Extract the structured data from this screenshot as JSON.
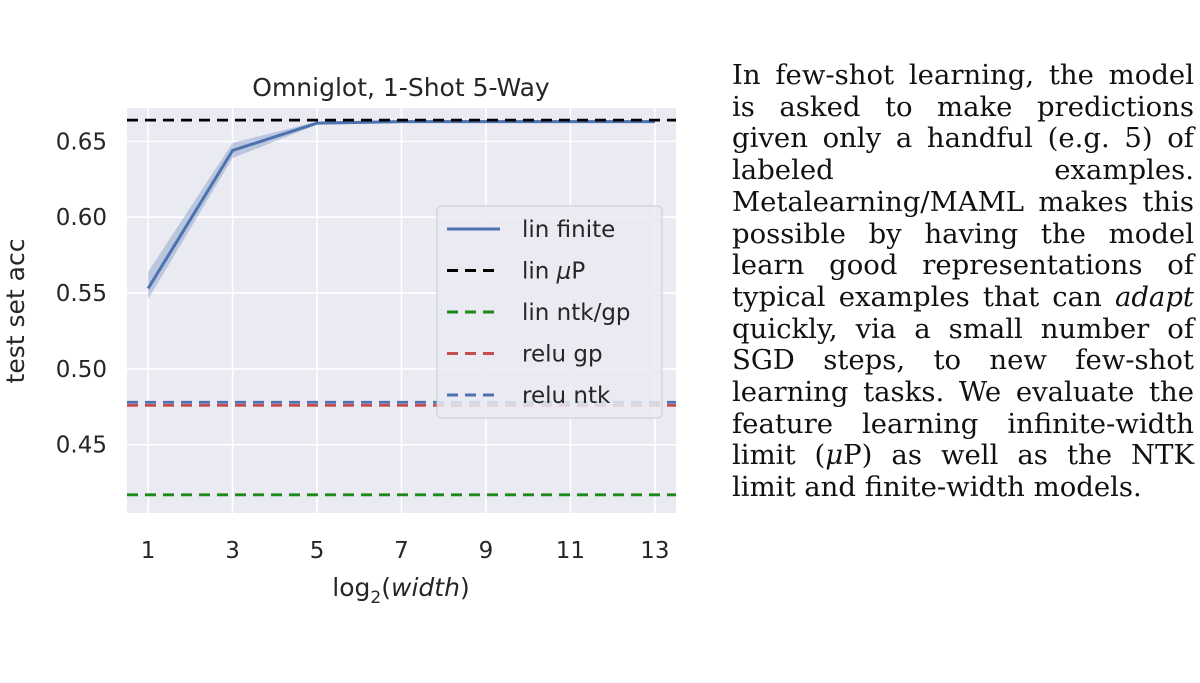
{
  "chart_data": {
    "type": "line",
    "title": "Omniglot, 1-Shot 5-Way",
    "xlabel": "log₂(width)",
    "xlabel_parts": {
      "prefix": "log",
      "subscript": "2",
      "open": "(",
      "italic": "width",
      "close": ")"
    },
    "ylabel": "test set acc",
    "x_ticks": [
      1,
      3,
      5,
      7,
      9,
      11,
      13
    ],
    "y_ticks": [
      "0.45",
      "0.50",
      "0.55",
      "0.60",
      "0.65"
    ],
    "xlim": [
      0.5,
      13.5
    ],
    "ylim": [
      0.405,
      0.672
    ],
    "grid": true,
    "legend_position": "center-right",
    "series": [
      {
        "name": "lin finite",
        "style": "solid",
        "color": "#4c72b0",
        "x": [
          1,
          3,
          5,
          7,
          9,
          11,
          13
        ],
        "y": [
          0.553,
          0.644,
          0.662,
          0.663,
          0.663,
          0.663,
          0.663
        ],
        "band_low": [
          0.546,
          0.639,
          0.661,
          0.662,
          0.662,
          0.662,
          0.662
        ],
        "band_high": [
          0.564,
          0.649,
          0.663,
          0.664,
          0.664,
          0.664,
          0.664
        ]
      },
      {
        "name": "lin μP",
        "name_parts": {
          "text": "lin ",
          "italic": "μ",
          "rest": "P"
        },
        "style": "dashed",
        "color": "#000000",
        "y_const": 0.664
      },
      {
        "name": "lin ntk/gp",
        "style": "dashed",
        "color": "#1a8a1a",
        "y_const": 0.417
      },
      {
        "name": "relu gp",
        "style": "dashed",
        "color": "#c44e52",
        "y_const": 0.476
      },
      {
        "name": "relu ntk",
        "style": "dashed",
        "color": "#4c72b0",
        "y_const": 0.478
      }
    ]
  },
  "caption": {
    "part1": "In few-shot learning, the model is asked to make predictions given only a handful (e.g. 5) of labeled examples. Metalearning/MAML makes this possible by having the model learn good representations of typical examples that can ",
    "emph": "adapt",
    "part2": " quickly, via a small number of SGD steps, to new few-shot learning tasks. We evaluate the feature learning infinite-width limit (",
    "mu": "μ",
    "part3": "P) as well as the NTK limit and finite-width models."
  }
}
